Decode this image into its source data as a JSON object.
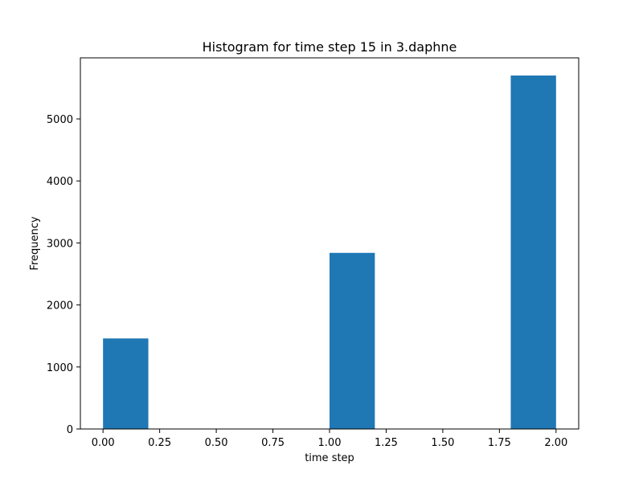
{
  "chart_data": {
    "type": "bar",
    "title": "Histogram for time step 15 in 3.daphne",
    "xlabel": "time step",
    "ylabel": "Frequency",
    "xlim": [
      -0.1,
      2.1
    ],
    "ylim": [
      0,
      5985
    ],
    "xticks": [
      0,
      0.25,
      0.5,
      0.75,
      1,
      1.25,
      1.5,
      1.75,
      2
    ],
    "xtick_labels": [
      "0.00",
      "0.25",
      "0.50",
      "0.75",
      "1.00",
      "1.25",
      "1.50",
      "1.75",
      "2.00"
    ],
    "yticks": [
      0,
      1000,
      2000,
      3000,
      4000,
      5000
    ],
    "ytick_labels": [
      "0",
      "1000",
      "2000",
      "3000",
      "4000",
      "5000"
    ],
    "bins": [
      {
        "x0": 0.0,
        "x1": 0.2,
        "count": 1460
      },
      {
        "x0": 0.2,
        "x1": 0.4,
        "count": 0
      },
      {
        "x0": 0.4,
        "x1": 0.6,
        "count": 0
      },
      {
        "x0": 0.6,
        "x1": 0.8,
        "count": 0
      },
      {
        "x0": 0.8,
        "x1": 1.0,
        "count": 0
      },
      {
        "x0": 1.0,
        "x1": 1.2,
        "count": 2840
      },
      {
        "x0": 1.2,
        "x1": 1.4,
        "count": 0
      },
      {
        "x0": 1.4,
        "x1": 1.6,
        "count": 0
      },
      {
        "x0": 1.6,
        "x1": 1.8,
        "count": 0
      },
      {
        "x0": 1.8,
        "x1": 2.0,
        "count": 5700
      }
    ],
    "bar_color": "#1f77b4",
    "grid": false,
    "legend": false
  }
}
